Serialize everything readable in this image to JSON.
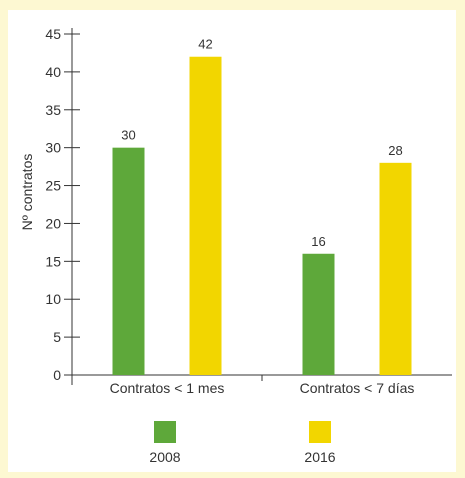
{
  "colors": {
    "background": "#fdf8d2",
    "plot_background": "#ffffff",
    "series_2008": "#5ea83a",
    "series_2016": "#f2d600"
  },
  "chart_data": {
    "type": "bar",
    "ylabel": "Nº contratos",
    "xlabel": "",
    "ylim": [
      0,
      45
    ],
    "yticks": [
      0,
      5,
      10,
      15,
      20,
      25,
      30,
      35,
      40,
      45
    ],
    "grid": false,
    "legend_position": "bottom",
    "categories": [
      "Contratos < 1 mes",
      "Contratos < 7 días"
    ],
    "series": [
      {
        "name": "2008",
        "values": [
          30,
          16
        ]
      },
      {
        "name": "2016",
        "values": [
          42,
          28
        ]
      }
    ]
  }
}
